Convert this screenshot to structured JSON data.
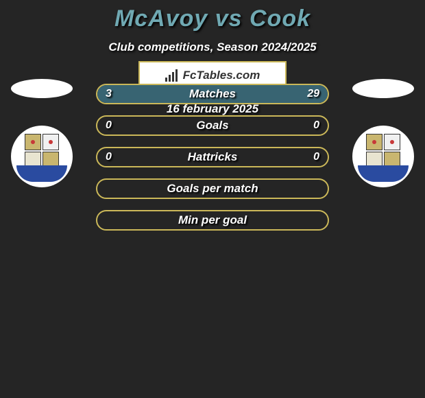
{
  "title": "McAvoy vs Cook",
  "subtitle": "Club competitions, Season 2024/2025",
  "date": "16 february 2025",
  "brand": "FcTables.com",
  "colors": {
    "background": "#252525",
    "title": "#70a9b3",
    "border": "#cbb859",
    "left_bar": "#386472",
    "right_bar": "#386472",
    "text": "#ffffff"
  },
  "rows": [
    {
      "label": "Matches",
      "left_val": "3",
      "right_val": "29",
      "left_pct": 9,
      "right_pct": 91,
      "show_vals": true
    },
    {
      "label": "Goals",
      "left_val": "0",
      "right_val": "0",
      "left_pct": 0,
      "right_pct": 0,
      "show_vals": true
    },
    {
      "label": "Hattricks",
      "left_val": "0",
      "right_val": "0",
      "left_pct": 0,
      "right_pct": 0,
      "show_vals": true
    },
    {
      "label": "Goals per match",
      "left_val": "",
      "right_val": "",
      "left_pct": 0,
      "right_pct": 0,
      "show_vals": false
    },
    {
      "label": "Min per goal",
      "left_val": "",
      "right_val": "",
      "left_pct": 0,
      "right_pct": 0,
      "show_vals": false
    }
  ]
}
